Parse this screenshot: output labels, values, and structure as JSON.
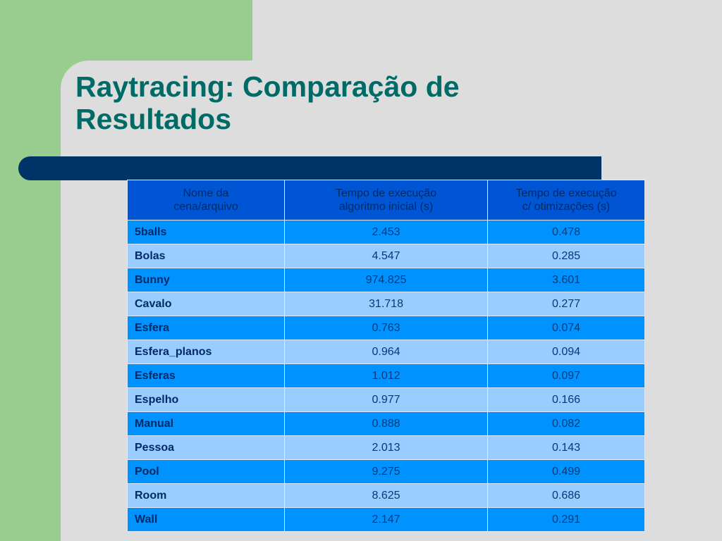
{
  "slide": {
    "title_line1": "Raytracing: Comparação de",
    "title_line2": "Resultados"
  },
  "table": {
    "headers": [
      [
        "Nome da",
        "cena/arquivo"
      ],
      [
        "Tempo de execução",
        "algoritmo inicial (s)"
      ],
      [
        "Tempo de execução",
        "c/ otimizações (s)"
      ]
    ],
    "rows": [
      {
        "name": "5balls",
        "initial": "2.453",
        "optimized": "0.478"
      },
      {
        "name": "Bolas",
        "initial": "4.547",
        "optimized": "0.285"
      },
      {
        "name": "Bunny",
        "initial": "974.825",
        "optimized": "3.601"
      },
      {
        "name": "Cavalo",
        "initial": "31.718",
        "optimized": "0.277"
      },
      {
        "name": "Esfera",
        "initial": "0.763",
        "optimized": "0.074"
      },
      {
        "name": "Esfera_planos",
        "initial": "0.964",
        "optimized": "0.094"
      },
      {
        "name": "Esferas",
        "initial": "1.012",
        "optimized": "0.097"
      },
      {
        "name": "Espelho",
        "initial": "0.977",
        "optimized": "0.166"
      },
      {
        "name": "Manual",
        "initial": "0.888",
        "optimized": "0.082"
      },
      {
        "name": "Pessoa",
        "initial": "2.013",
        "optimized": "0.143"
      },
      {
        "name": "Pool",
        "initial": "9.275",
        "optimized": "0.499"
      },
      {
        "name": "Room",
        "initial": "8.625",
        "optimized": "0.686"
      },
      {
        "name": "Wall",
        "initial": "2.147",
        "optimized": "0.291"
      }
    ]
  },
  "colors": {
    "title": "#006b66",
    "accent_green": "#99cc8f",
    "bar_navy": "#003366",
    "header_blue": "#0055d4",
    "row_blue": "#0093ff",
    "row_light_blue": "#99ccff"
  }
}
